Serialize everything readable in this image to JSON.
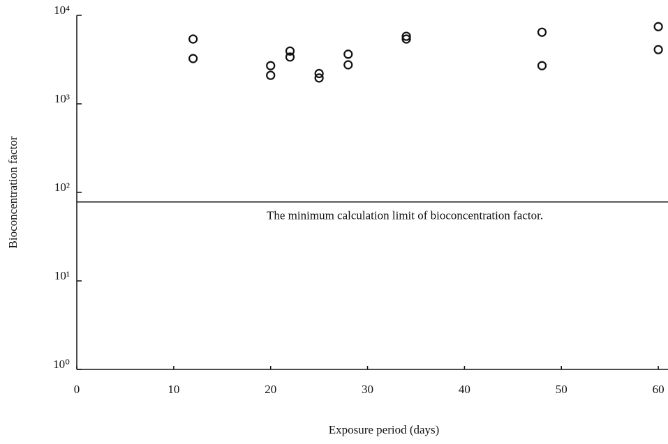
{
  "chart_data": {
    "type": "scatter",
    "x_label": "Exposure period (days)",
    "y_label": "Bioconcentration factor",
    "x": [
      12,
      12,
      20,
      20,
      22,
      22,
      25,
      25,
      28,
      28,
      34,
      34,
      48,
      48,
      60,
      60
    ],
    "values": [
      5400,
      3250,
      2700,
      2100,
      3950,
      3380,
      2200,
      1960,
      3640,
      2760,
      5800,
      5400,
      6450,
      2700,
      7450,
      4100
    ],
    "color": "#111111",
    "marker": "open-circle",
    "xlim": [
      0,
      61
    ],
    "xticks": [
      0,
      10,
      20,
      30,
      40,
      50,
      60
    ],
    "ylim": [
      1,
      10000
    ],
    "ylog": true,
    "yticks": [
      {
        "value": 1,
        "label": "10⁰"
      },
      {
        "value": 10,
        "label": "10¹"
      },
      {
        "value": 100,
        "label": "10²"
      },
      {
        "value": 1000,
        "label": "10³"
      },
      {
        "value": 10000,
        "label": "10⁴"
      }
    ],
    "reference_line": {
      "value": 78,
      "label": "The minimum calculation limit of bioconcentration factor."
    }
  }
}
